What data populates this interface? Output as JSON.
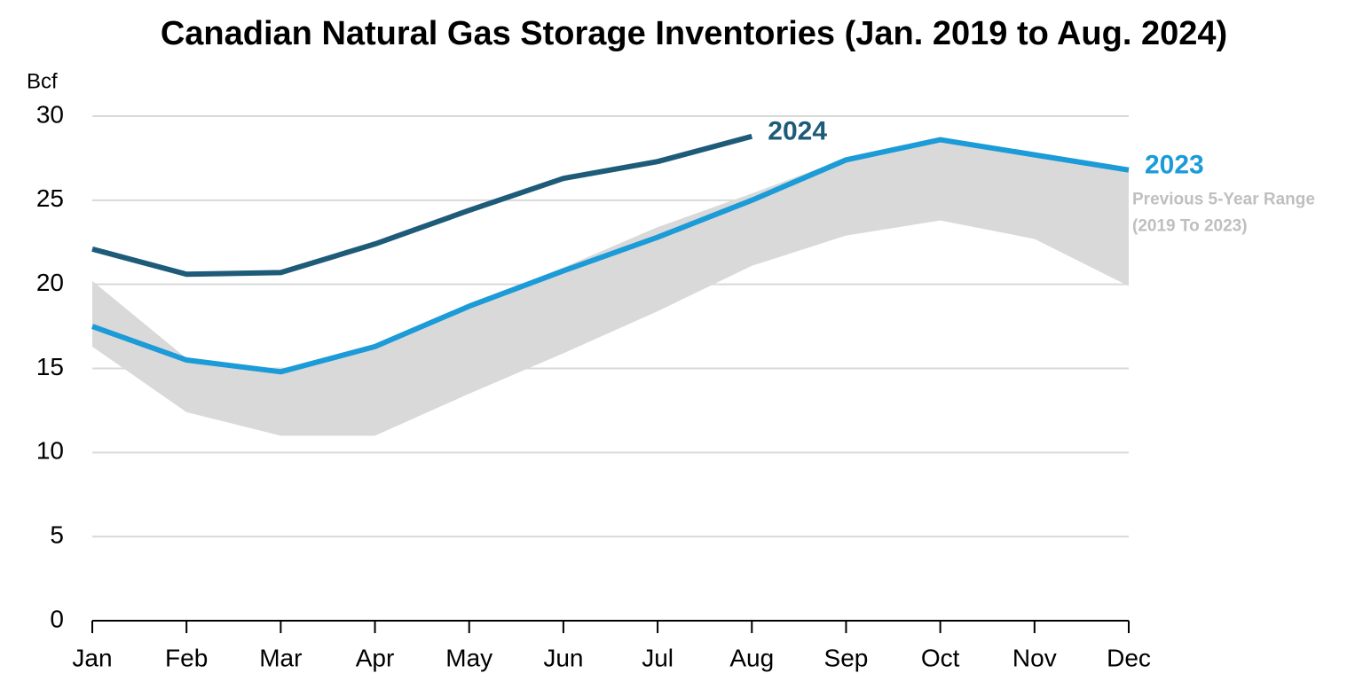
{
  "chart_data": {
    "type": "line",
    "title": "Canadian Natural Gas Storage Inventories (Jan. 2019 to Aug. 2024)",
    "y_label": "Bcf",
    "categories": [
      "Jan",
      "Feb",
      "Mar",
      "Apr",
      "May",
      "Jun",
      "Jul",
      "Aug",
      "Sep",
      "Oct",
      "Nov",
      "Dec"
    ],
    "ylim": [
      0,
      30
    ],
    "yticks": [
      0,
      5,
      10,
      15,
      20,
      25,
      30
    ],
    "grid": true,
    "range": {
      "name": [
        "Previous 5-Year Range",
        "(2019 To 2023)"
      ],
      "color": "#d9d9d9",
      "max": [
        20.2,
        15.6,
        14.9,
        16.4,
        18.8,
        21.0,
        23.4,
        25.4,
        27.5,
        28.6,
        27.8,
        26.8
      ],
      "min": [
        16.3,
        12.4,
        11.0,
        11.0,
        13.5,
        15.9,
        18.4,
        21.1,
        22.9,
        23.8,
        22.7,
        19.9
      ]
    },
    "series": [
      {
        "name": "2024",
        "color": "#1d5b79",
        "values": [
          22.1,
          20.6,
          20.7,
          22.4,
          24.4,
          26.3,
          27.3,
          28.8,
          null,
          null,
          null,
          null
        ]
      },
      {
        "name": "2023",
        "color": "#1b9bd7",
        "values": [
          17.5,
          15.5,
          14.8,
          16.3,
          18.7,
          20.8,
          22.8,
          25.0,
          27.4,
          28.6,
          27.7,
          26.8
        ]
      }
    ]
  }
}
